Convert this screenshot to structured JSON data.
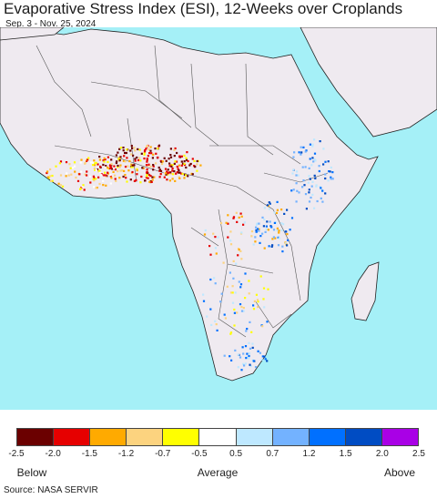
{
  "title": "Evaporative Stress Index (ESI), 12-Weeks over Croplands",
  "subtitle": "Sep. 3 - Nov. 25, 2024",
  "legend": {
    "colors": [
      "#6b0000",
      "#e60000",
      "#ffaa00",
      "#fcd37f",
      "#ffff00",
      "#ffffff",
      "#bee8ff",
      "#73b2ff",
      "#0070ff",
      "#004cc3",
      "#a900e6"
    ],
    "ticks": [
      "-2.5",
      "-2.0",
      "-1.5",
      "-1.2",
      "-0.7",
      "-0.5",
      "0.5",
      "0.7",
      "1.2",
      "1.5",
      "2.0",
      "2.5"
    ],
    "below_label": "Below",
    "average_label": "Average",
    "above_label": "Above"
  },
  "map_colors": {
    "ocean": "#a5f0f7",
    "land": "#efeaf0",
    "border": "#555555",
    "coast": "#222222"
  },
  "source": "Source: NASA SERVIR"
}
